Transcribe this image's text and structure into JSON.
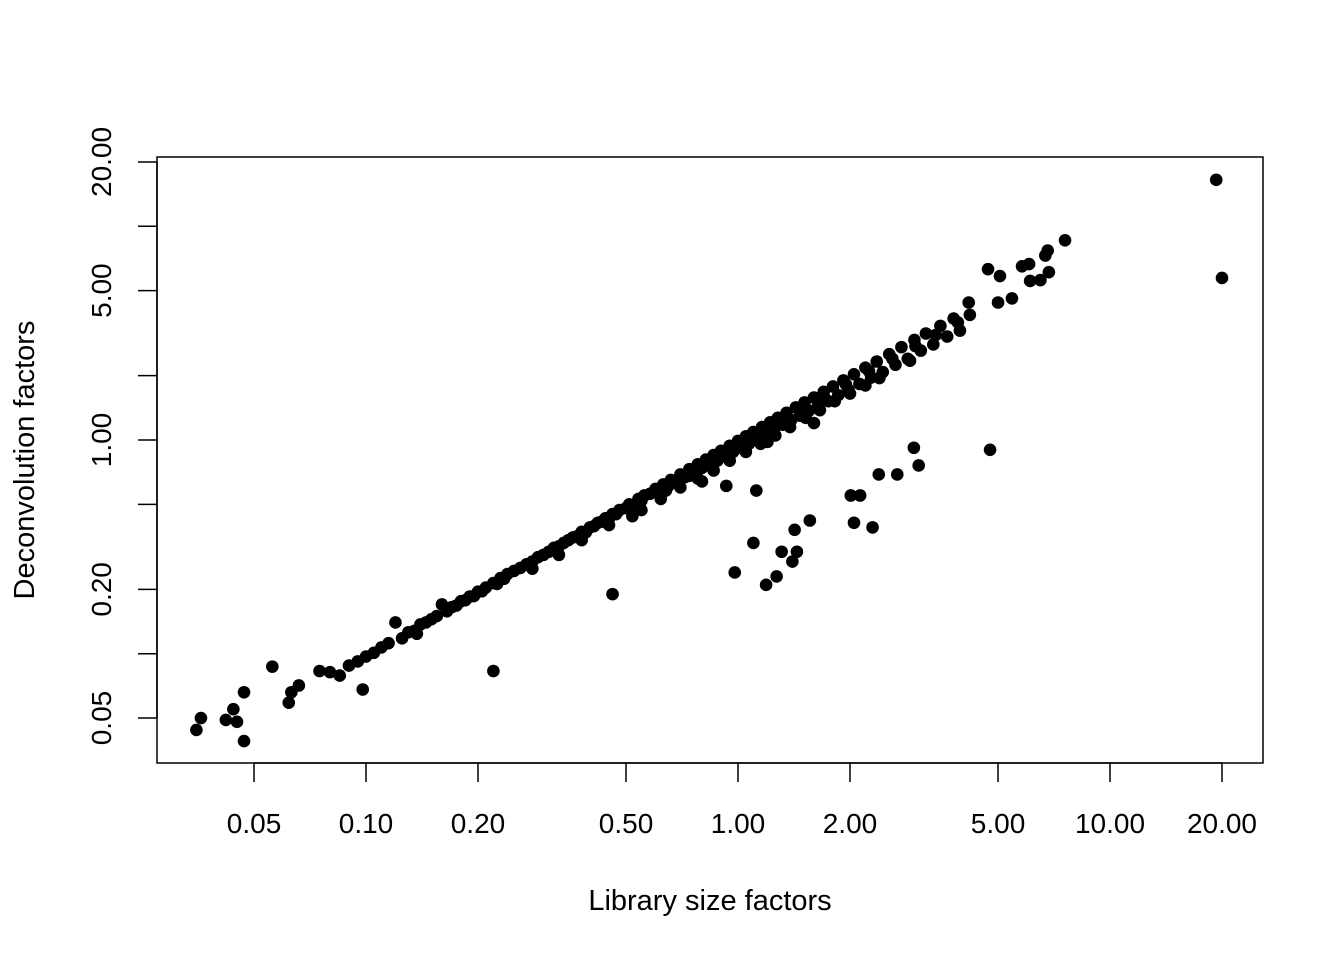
{
  "chart_data": {
    "type": "scatter",
    "title": "",
    "xlabel": "Library size factors",
    "ylabel": "Deconvolution factors",
    "x_scale": "log",
    "y_scale": "log",
    "xlim": [
      0.03,
      30
    ],
    "ylim": [
      0.035,
      24
    ],
    "x_ticks": [
      0.05,
      0.1,
      0.2,
      0.5,
      1,
      2,
      5,
      10,
      20
    ],
    "x_tick_labels": [
      "0.05",
      "0.10",
      "0.20",
      "0.50",
      "1.00",
      "2.00",
      "5.00",
      "10.00",
      "20.00"
    ],
    "y_ticks": [
      0.05,
      0.1,
      0.2,
      0.5,
      1,
      2,
      5,
      10,
      20
    ],
    "y_tick_labels": [
      "0.05",
      "",
      "0.20",
      "",
      "1.00",
      "",
      "5.00",
      "",
      "20.00"
    ],
    "grid": false,
    "legend": "none",
    "point_color": "#000000",
    "points": [
      [
        0.035,
        0.044
      ],
      [
        0.036,
        0.05
      ],
      [
        0.042,
        0.049
      ],
      [
        0.044,
        0.055
      ],
      [
        0.045,
        0.048
      ],
      [
        0.047,
        0.039
      ],
      [
        0.047,
        0.066
      ],
      [
        0.056,
        0.087
      ],
      [
        0.062,
        0.059
      ],
      [
        0.063,
        0.066
      ],
      [
        0.066,
        0.071
      ],
      [
        0.075,
        0.083
      ],
      [
        0.098,
        0.068
      ],
      [
        0.137,
        0.124
      ],
      [
        0.22,
        0.083
      ],
      [
        0.46,
        0.19
      ],
      [
        0.93,
        0.61
      ],
      [
        0.98,
        0.24
      ],
      [
        1.1,
        0.33
      ],
      [
        1.12,
        0.58
      ],
      [
        1.19,
        0.21
      ],
      [
        1.27,
        0.23
      ],
      [
        1.31,
        0.3
      ],
      [
        1.4,
        0.27
      ],
      [
        1.42,
        0.38
      ],
      [
        1.44,
        0.3
      ],
      [
        1.56,
        0.42
      ],
      [
        2.01,
        0.55
      ],
      [
        2.05,
        0.41
      ],
      [
        2.13,
        0.55
      ],
      [
        2.3,
        0.39
      ],
      [
        2.39,
        0.69
      ],
      [
        2.68,
        0.69
      ],
      [
        2.97,
        0.92
      ],
      [
        3.06,
        0.76
      ],
      [
        4.76,
        0.9
      ],
      [
        19.3,
        16.5
      ],
      [
        20.0,
        5.73
      ],
      [
        7.57,
        8.6
      ],
      [
        6.8,
        7.7
      ],
      [
        6.7,
        7.3
      ],
      [
        6.06,
        6.66
      ],
      [
        5.8,
        6.5
      ],
      [
        4.7,
        6.3
      ],
      [
        5.06,
        5.85
      ],
      [
        6.85,
        6.1
      ],
      [
        6.5,
        5.6
      ],
      [
        6.1,
        5.55
      ],
      [
        5.45,
        4.6
      ],
      [
        5.0,
        4.4
      ],
      [
        4.17,
        4.4
      ],
      [
        0.08,
        0.082
      ],
      [
        0.085,
        0.079
      ],
      [
        0.09,
        0.088
      ],
      [
        0.095,
        0.092
      ],
      [
        0.1,
        0.097
      ],
      [
        0.105,
        0.101
      ],
      [
        0.11,
        0.107
      ],
      [
        0.115,
        0.112
      ],
      [
        0.12,
        0.14
      ],
      [
        0.125,
        0.118
      ],
      [
        0.13,
        0.126
      ],
      [
        0.135,
        0.128
      ],
      [
        0.14,
        0.137
      ],
      [
        0.145,
        0.14
      ],
      [
        0.15,
        0.145
      ],
      [
        0.155,
        0.15
      ],
      [
        0.16,
        0.17
      ],
      [
        0.165,
        0.158
      ],
      [
        0.17,
        0.165
      ],
      [
        0.175,
        0.168
      ],
      [
        0.18,
        0.176
      ],
      [
        0.185,
        0.178
      ],
      [
        0.19,
        0.185
      ],
      [
        0.195,
        0.186
      ],
      [
        0.2,
        0.195
      ],
      [
        0.205,
        0.196
      ],
      [
        0.21,
        0.204
      ],
      [
        0.22,
        0.214
      ],
      [
        0.225,
        0.212
      ],
      [
        0.23,
        0.226
      ],
      [
        0.235,
        0.224
      ],
      [
        0.24,
        0.236
      ],
      [
        0.25,
        0.244
      ],
      [
        0.26,
        0.252
      ],
      [
        0.27,
        0.262
      ],
      [
        0.28,
        0.27
      ],
      [
        0.29,
        0.283
      ],
      [
        0.3,
        0.29
      ],
      [
        0.31,
        0.3
      ],
      [
        0.32,
        0.313
      ],
      [
        0.33,
        0.318
      ],
      [
        0.34,
        0.33
      ],
      [
        0.35,
        0.34
      ],
      [
        0.36,
        0.35
      ],
      [
        0.37,
        0.355
      ],
      [
        0.38,
        0.372
      ],
      [
        0.39,
        0.37
      ],
      [
        0.4,
        0.39
      ],
      [
        0.41,
        0.395
      ],
      [
        0.42,
        0.41
      ],
      [
        0.43,
        0.415
      ],
      [
        0.44,
        0.43
      ],
      [
        0.45,
        0.43
      ],
      [
        0.46,
        0.45
      ],
      [
        0.47,
        0.45
      ],
      [
        0.48,
        0.47
      ],
      [
        0.5,
        0.48
      ],
      [
        0.51,
        0.5
      ],
      [
        0.52,
        0.49
      ],
      [
        0.54,
        0.53
      ],
      [
        0.55,
        0.52
      ],
      [
        0.56,
        0.55
      ],
      [
        0.58,
        0.56
      ],
      [
        0.6,
        0.59
      ],
      [
        0.61,
        0.57
      ],
      [
        0.63,
        0.62
      ],
      [
        0.65,
        0.61
      ],
      [
        0.66,
        0.65
      ],
      [
        0.68,
        0.64
      ],
      [
        0.7,
        0.69
      ],
      [
        0.72,
        0.67
      ],
      [
        0.74,
        0.73
      ],
      [
        0.76,
        0.71
      ],
      [
        0.78,
        0.77
      ],
      [
        0.8,
        0.74
      ],
      [
        0.82,
        0.81
      ],
      [
        0.84,
        0.78
      ],
      [
        0.86,
        0.85
      ],
      [
        0.88,
        0.8
      ],
      [
        0.9,
        0.89
      ],
      [
        0.92,
        0.84
      ],
      [
        0.95,
        0.94
      ],
      [
        0.97,
        0.88
      ],
      [
        1.0,
        0.99
      ],
      [
        1.02,
        0.92
      ],
      [
        1.05,
        1.04
      ],
      [
        1.07,
        0.96
      ],
      [
        1.1,
        1.09
      ],
      [
        1.13,
        1.0
      ],
      [
        1.16,
        1.15
      ],
      [
        1.19,
        1.06
      ],
      [
        1.22,
        1.21
      ],
      [
        1.25,
        1.12
      ],
      [
        1.28,
        1.27
      ],
      [
        1.32,
        1.18
      ],
      [
        1.35,
        1.34
      ],
      [
        1.39,
        1.24
      ],
      [
        1.43,
        1.42
      ],
      [
        1.47,
        1.3
      ],
      [
        1.51,
        1.5
      ],
      [
        1.55,
        1.37
      ],
      [
        1.6,
        1.58
      ],
      [
        1.64,
        1.44
      ],
      [
        1.7,
        1.68
      ],
      [
        1.75,
        1.52
      ],
      [
        1.8,
        1.78
      ],
      [
        1.86,
        1.62
      ],
      [
        1.92,
        1.9
      ],
      [
        1.98,
        1.72
      ],
      [
        2.05,
        2.03
      ],
      [
        2.12,
        1.83
      ],
      [
        2.2,
        2.18
      ],
      [
        2.28,
        1.96
      ],
      [
        2.36,
        2.33
      ],
      [
        2.45,
        2.08
      ],
      [
        2.55,
        2.52
      ],
      [
        2.65,
        2.25
      ],
      [
        2.75,
        2.72
      ],
      [
        2.86,
        2.4
      ],
      [
        2.98,
        2.94
      ],
      [
        3.1,
        2.62
      ],
      [
        3.2,
        3.15
      ],
      [
        3.35,
        2.8
      ],
      [
        3.5,
        3.42
      ],
      [
        3.65,
        3.05
      ],
      [
        3.8,
        3.7
      ],
      [
        3.95,
        3.25
      ],
      [
        4.2,
        3.85
      ],
      [
        0.55,
        0.47
      ],
      [
        0.62,
        0.53
      ],
      [
        0.7,
        0.6
      ],
      [
        0.78,
        0.66
      ],
      [
        0.86,
        0.72
      ],
      [
        0.95,
        0.8
      ],
      [
        1.05,
        0.88
      ],
      [
        1.15,
        0.96
      ],
      [
        1.26,
        1.05
      ],
      [
        1.38,
        1.15
      ],
      [
        1.52,
        1.27
      ],
      [
        1.66,
        1.38
      ],
      [
        1.82,
        1.52
      ],
      [
        2.0,
        1.65
      ],
      [
        2.2,
        1.8
      ],
      [
        0.45,
        0.4
      ],
      [
        0.38,
        0.34
      ],
      [
        0.33,
        0.29
      ],
      [
        0.28,
        0.25
      ],
      [
        0.64,
        0.58
      ],
      [
        0.74,
        0.68
      ],
      [
        0.84,
        0.76
      ],
      [
        0.98,
        0.93
      ],
      [
        1.12,
        1.08
      ],
      [
        1.3,
        1.22
      ],
      [
        1.48,
        1.4
      ],
      [
        1.7,
        1.6
      ],
      [
        1.95,
        1.82
      ],
      [
        2.25,
        2.1
      ],
      [
        2.6,
        2.4
      ],
      [
        3.0,
        2.75
      ],
      [
        3.4,
        3.1
      ],
      [
        3.9,
        3.55
      ],
      [
        0.52,
        0.44
      ],
      [
        1.6,
        1.2
      ],
      [
        2.4,
        1.95
      ],
      [
        2.9,
        2.35
      ],
      [
        0.8,
        0.64
      ],
      [
        1.2,
        0.98
      ]
    ]
  }
}
